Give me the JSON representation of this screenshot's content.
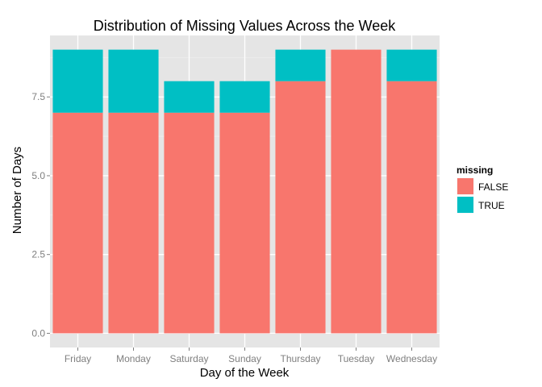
{
  "chart_data": {
    "type": "bar",
    "stacked": true,
    "title": "Distribution of Missing Values Across the Week",
    "xlabel": "Day of the Week",
    "ylabel": "Number of Days",
    "categories": [
      "Friday",
      "Monday",
      "Saturday",
      "Sunday",
      "Thursday",
      "Tuesday",
      "Wednesday"
    ],
    "series": [
      {
        "name": "FALSE",
        "color": "#F8766D",
        "values": [
          7,
          7,
          7,
          7,
          8,
          9,
          8
        ]
      },
      {
        "name": "TRUE",
        "color": "#00BFC4",
        "values": [
          2,
          2,
          1,
          1,
          1,
          0,
          1
        ]
      }
    ],
    "ylim": [
      -0.45,
      9.45
    ],
    "yticks": [
      0,
      2.5,
      5,
      7.5
    ],
    "ytick_labels": [
      "0.0",
      "2.5",
      "5.0",
      "7.5"
    ],
    "legend": {
      "title": "missing",
      "position": "right"
    },
    "grid": true,
    "panel_color": "#E5E5E5",
    "grid_color": "#FFFFFF"
  }
}
